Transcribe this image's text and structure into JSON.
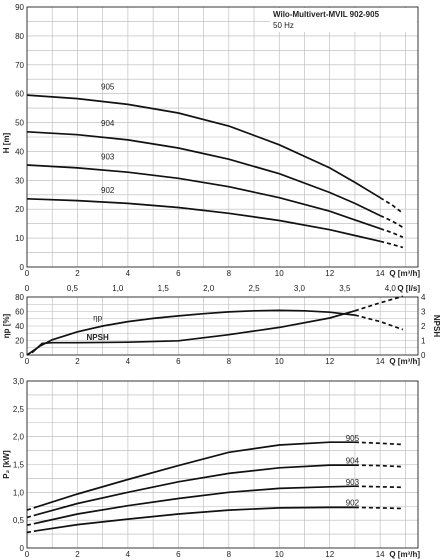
{
  "chart_data": [
    {
      "type": "line",
      "title": "Wilo-Multivert-MVIL 902-905",
      "subtitle": "50 Hz",
      "ylabel": "H [m]",
      "xlabel": "Q [m³/h]",
      "xlabel_secondary": "Q [l/s]",
      "xlim": [
        0,
        15.5
      ],
      "ylim": [
        0,
        90
      ],
      "xticks": [
        0,
        2,
        4,
        6,
        8,
        10,
        12,
        14
      ],
      "yticks": [
        0,
        10,
        20,
        30,
        40,
        50,
        60,
        70,
        80,
        90
      ],
      "xticks_secondary": [
        "0",
        "0,5",
        "1,0",
        "1,5",
        "2,0",
        "2,5",
        "3,0",
        "3,5",
        "4,0"
      ],
      "grid": true,
      "series": [
        {
          "name": "905",
          "solid": [
            [
              0,
              59.5
            ],
            [
              2,
              58.3
            ],
            [
              4,
              56.3
            ],
            [
              6,
              53.3
            ],
            [
              8,
              48.8
            ],
            [
              10,
              42.3
            ],
            [
              12,
              34.3
            ],
            [
              13,
              29.3
            ],
            [
              14,
              24.0
            ]
          ],
          "dashed": [
            [
              14,
              24.0
            ],
            [
              14.5,
              21.3
            ],
            [
              14.9,
              18.6
            ]
          ]
        },
        {
          "name": "904",
          "solid": [
            [
              0,
              46.8
            ],
            [
              2,
              45.8
            ],
            [
              4,
              44.0
            ],
            [
              6,
              41.2
            ],
            [
              8,
              37.3
            ],
            [
              10,
              32.3
            ],
            [
              12,
              25.8
            ],
            [
              13,
              22.0
            ],
            [
              14,
              17.8
            ]
          ],
          "dashed": [
            [
              14,
              17.8
            ],
            [
              14.5,
              15.8
            ],
            [
              14.9,
              13.7
            ]
          ]
        },
        {
          "name": "903",
          "solid": [
            [
              0,
              35.3
            ],
            [
              2,
              34.3
            ],
            [
              4,
              32.8
            ],
            [
              6,
              30.7
            ],
            [
              8,
              27.8
            ],
            [
              10,
              24.0
            ],
            [
              12,
              19.3
            ],
            [
              13,
              16.3
            ],
            [
              14,
              13.3
            ]
          ],
          "dashed": [
            [
              14,
              13.3
            ],
            [
              14.5,
              11.8
            ],
            [
              14.9,
              10.3
            ]
          ]
        },
        {
          "name": "902",
          "solid": [
            [
              0,
              23.6
            ],
            [
              2,
              23.0
            ],
            [
              4,
              22.0
            ],
            [
              6,
              20.6
            ],
            [
              8,
              18.6
            ],
            [
              10,
              16.1
            ],
            [
              12,
              12.9
            ],
            [
              13,
              10.9
            ],
            [
              14,
              8.9
            ]
          ],
          "dashed": [
            [
              14,
              8.9
            ],
            [
              14.5,
              7.8
            ],
            [
              14.9,
              6.8
            ]
          ]
        }
      ]
    },
    {
      "type": "line",
      "ylabel": "ηp [%]",
      "ylabel_right": "NPSH",
      "xlabel": "Q [m³/h]",
      "xlim": [
        0,
        15.5
      ],
      "ylim": [
        0,
        80
      ],
      "ylim_right": [
        0,
        4
      ],
      "xticks": [
        0,
        2,
        4,
        6,
        8,
        10,
        12,
        14
      ],
      "yticks": [
        0,
        20,
        40,
        60,
        80
      ],
      "yticks_right": [
        0,
        1,
        2,
        3,
        4
      ],
      "grid": true,
      "series": [
        {
          "name": "ηp",
          "axis": "left",
          "solid": [
            [
              0,
              0
            ],
            [
              0.5,
              12
            ],
            [
              1,
              21
            ],
            [
              2,
              32
            ],
            [
              3,
              40
            ],
            [
              4,
              46
            ],
            [
              5,
              50.5
            ],
            [
              6,
              54
            ],
            [
              7,
              57
            ],
            [
              8,
              59.5
            ],
            [
              9,
              61
            ],
            [
              10,
              61.5
            ],
            [
              11,
              61
            ],
            [
              12,
              59
            ],
            [
              13,
              55
            ]
          ],
          "dashed": [
            [
              13,
              55
            ],
            [
              14,
              46
            ],
            [
              14.9,
              35
            ]
          ]
        },
        {
          "name": "NPSH",
          "axis": "right",
          "solid": [
            [
              0.2,
              0.15
            ],
            [
              0.6,
              0.8
            ],
            [
              1,
              0.85
            ],
            [
              2,
              0.85
            ],
            [
              4,
              0.88
            ],
            [
              6,
              0.98
            ],
            [
              8,
              1.4
            ],
            [
              10,
              1.9
            ],
            [
              12,
              2.55
            ],
            [
              13,
              3.05
            ]
          ],
          "dashed": [
            [
              13,
              3.05
            ],
            [
              14,
              3.6
            ],
            [
              14.9,
              4.05
            ]
          ]
        }
      ]
    },
    {
      "type": "line",
      "ylabel": "P₂ [kW]",
      "xlabel": "Q [m³/h]",
      "xlim": [
        0,
        15.5
      ],
      "ylim": [
        0,
        3.0
      ],
      "xticks": [
        0,
        2,
        4,
        6,
        8,
        10,
        12,
        14
      ],
      "yticks": [
        "0",
        "0,5",
        "1,0",
        "1,5",
        "2,0",
        "2,5",
        "3,0"
      ],
      "grid": true,
      "series": [
        {
          "name": "905",
          "dashed_start": [
            [
              0,
              0.68
            ],
            [
              0.4,
              0.74
            ]
          ],
          "solid": [
            [
              0.4,
              0.74
            ],
            [
              2,
              0.97
            ],
            [
              4,
              1.23
            ],
            [
              6,
              1.48
            ],
            [
              8,
              1.72
            ],
            [
              10,
              1.85
            ],
            [
              12,
              1.9
            ],
            [
              13,
              1.9
            ]
          ],
          "dashed": [
            [
              13,
              1.9
            ],
            [
              14,
              1.88
            ],
            [
              14.9,
              1.86
            ]
          ]
        },
        {
          "name": "904",
          "dashed_start": [
            [
              0,
              0.55
            ],
            [
              0.4,
              0.6
            ]
          ],
          "solid": [
            [
              0.4,
              0.6
            ],
            [
              2,
              0.8
            ],
            [
              4,
              1.0
            ],
            [
              6,
              1.19
            ],
            [
              8,
              1.34
            ],
            [
              10,
              1.44
            ],
            [
              12,
              1.49
            ],
            [
              13,
              1.49
            ]
          ],
          "dashed": [
            [
              13,
              1.49
            ],
            [
              14,
              1.48
            ],
            [
              14.9,
              1.46
            ]
          ]
        },
        {
          "name": "903",
          "dashed_start": [
            [
              0,
              0.41
            ],
            [
              0.4,
              0.45
            ]
          ],
          "solid": [
            [
              0.4,
              0.45
            ],
            [
              2,
              0.61
            ],
            [
              4,
              0.76
            ],
            [
              6,
              0.89
            ],
            [
              8,
              1.0
            ],
            [
              10,
              1.07
            ],
            [
              12,
              1.1
            ],
            [
              13,
              1.11
            ]
          ],
          "dashed": [
            [
              13,
              1.11
            ],
            [
              14,
              1.1
            ],
            [
              14.9,
              1.09
            ]
          ]
        },
        {
          "name": "902",
          "dashed_start": [
            [
              0,
              0.28
            ],
            [
              0.4,
              0.31
            ]
          ],
          "solid": [
            [
              0.4,
              0.31
            ],
            [
              2,
              0.42
            ],
            [
              4,
              0.52
            ],
            [
              6,
              0.61
            ],
            [
              8,
              0.68
            ],
            [
              10,
              0.72
            ],
            [
              12,
              0.73
            ],
            [
              13,
              0.73
            ]
          ],
          "dashed": [
            [
              13,
              0.73
            ],
            [
              14,
              0.72
            ],
            [
              14.9,
              0.71
            ]
          ]
        }
      ]
    }
  ]
}
